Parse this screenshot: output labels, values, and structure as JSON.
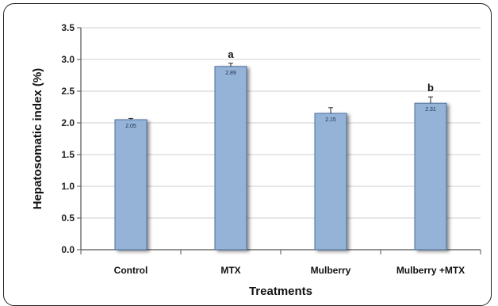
{
  "chart_data": {
    "type": "bar",
    "xlabel": "Treatments",
    "ylabel": "Hepatosomatic index (%)",
    "ylim": [
      0,
      3.5
    ],
    "yticks": [
      "0.0",
      "0.5",
      "1.0",
      "1.5",
      "2.0",
      "2.5",
      "3.0",
      "3.5"
    ],
    "grid": true,
    "categories": [
      "Control",
      "MTX",
      "Mulberry",
      "Mulberry +MTX"
    ],
    "values": [
      2.05,
      2.89,
      2.15,
      2.31
    ],
    "value_labels": [
      "2.05",
      "2.89",
      "2.15",
      "2.31"
    ],
    "errors": [
      0.02,
      0.05,
      0.09,
      0.1
    ],
    "significance": [
      "",
      "a",
      "",
      "b"
    ],
    "colors": {
      "bar": "#95b3d7",
      "bar_border": "#4a6fa0",
      "grid": "#cfcfcf",
      "axis": "#555555"
    }
  }
}
